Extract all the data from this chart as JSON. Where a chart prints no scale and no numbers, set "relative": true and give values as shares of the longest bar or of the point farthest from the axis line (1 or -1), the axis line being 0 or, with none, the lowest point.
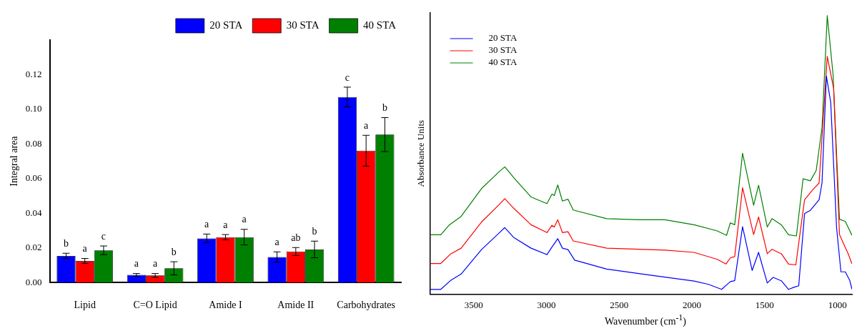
{
  "chart_data": [
    {
      "type": "bar",
      "ylabel": "Integral area",
      "categories": [
        "Lipid",
        "C=O Lipid",
        "Amide I",
        "Amide II",
        "Carbohydrates"
      ],
      "ylim": [
        0,
        0.14
      ],
      "yticks": [
        {
          "value": 0,
          "label": "0.00"
        },
        {
          "value": 0.02,
          "label": "0.02"
        },
        {
          "value": 0.04,
          "label": "0.04"
        },
        {
          "value": 0.06,
          "label": "0.06"
        },
        {
          "value": 0.08,
          "label": "0.08"
        },
        {
          "value": 0.1,
          "label": "0.10"
        },
        {
          "value": 0.12,
          "label": "0.12"
        }
      ],
      "grid": false,
      "legend": "top right",
      "series": [
        {
          "name": "20 STA",
          "color": "#0000ff",
          "values": [
            0.0154,
            0.0044,
            0.0255,
            0.0147,
            0.1071
          ],
          "errors": [
            0.0015,
            0.0008,
            0.0025,
            0.003,
            0.0057
          ],
          "value_labels": [
            "b",
            "a",
            "a",
            "a",
            "c"
          ]
        },
        {
          "name": "30 STA",
          "color": "#ff0000",
          "values": [
            0.0125,
            0.0041,
            0.0262,
            0.0179,
            0.0761
          ],
          "errors": [
            0.0014,
            0.0011,
            0.0015,
            0.0023,
            0.0089
          ],
          "value_labels": [
            "a",
            "a",
            "a",
            "ab",
            "a"
          ]
        },
        {
          "name": "40 STA",
          "color": "#008000",
          "values": [
            0.0186,
            0.0082,
            0.0262,
            0.0191,
            0.0854
          ],
          "errors": [
            0.0025,
            0.0038,
            0.0045,
            0.0048,
            0.0098
          ],
          "value_labels": [
            "c",
            "b",
            "a",
            "b",
            "b"
          ]
        }
      ]
    },
    {
      "type": "line",
      "relative": true,
      "xlabel": "Wavenumber (cm$^{-1}$)",
      "ylabel": "Absorbance Units",
      "xlim": [
        3800,
        900
      ],
      "xticks": [
        3500,
        3000,
        2500,
        2000,
        1500,
        1000
      ],
      "grid": false,
      "legend": "top left",
      "marker": "none",
      "series": [
        {
          "name": "20 STA",
          "color": "#0000ff",
          "x": [
            3800,
            3726,
            3656,
            3586,
            3446,
            3326,
            3286,
            3226,
            3106,
            2996,
            2962,
            2922,
            2890,
            2852,
            2806,
            2586,
            2286,
            1986,
            1886,
            1796,
            1736,
            1706,
            1652,
            1586,
            1542,
            1482,
            1442,
            1386,
            1336,
            1296,
            1266,
            1226,
            1186,
            1126,
            1106,
            1076,
            1046,
            1006,
            976,
            946,
            916,
            900
          ],
          "values": [
            0.017,
            0.017,
            0.05,
            0.072,
            0.16,
            0.219,
            0.239,
            0.204,
            0.165,
            0.142,
            0.169,
            0.199,
            0.165,
            0.16,
            0.122,
            0.09,
            0.068,
            0.047,
            0.035,
            0.017,
            0.045,
            0.048,
            0.242,
            0.085,
            0.15,
            0.04,
            0.06,
            0.048,
            0.017,
            0.025,
            0.03,
            0.289,
            0.301,
            0.339,
            0.399,
            0.783,
            0.688,
            0.239,
            0.08,
            0.08,
            0.05,
            0.017
          ]
        },
        {
          "name": "30 STA",
          "color": "#ff0000",
          "x": [
            3800,
            3726,
            3656,
            3586,
            3446,
            3326,
            3286,
            3226,
            3106,
            2996,
            2962,
            2946,
            2922,
            2890,
            2852,
            2816,
            2586,
            2186,
            1986,
            1826,
            1766,
            1736,
            1706,
            1652,
            1576,
            1542,
            1482,
            1450,
            1386,
            1336,
            1286,
            1226,
            1166,
            1126,
            1070,
            1026,
            986,
            956,
            926,
            900
          ],
          "values": [
            0.11,
            0.11,
            0.145,
            0.165,
            0.259,
            0.321,
            0.343,
            0.309,
            0.249,
            0.221,
            0.247,
            0.241,
            0.267,
            0.221,
            0.224,
            0.191,
            0.165,
            0.158,
            0.15,
            0.125,
            0.108,
            0.13,
            0.135,
            0.382,
            0.214,
            0.277,
            0.145,
            0.161,
            0.145,
            0.108,
            0.105,
            0.339,
            0.377,
            0.399,
            0.854,
            0.738,
            0.214,
            0.179,
            0.145,
            0.108
          ]
        },
        {
          "name": "40 STA",
          "color": "#008000",
          "x": [
            3800,
            3726,
            3666,
            3586,
            3446,
            3326,
            3286,
            3226,
            3106,
            2996,
            2962,
            2946,
            2922,
            2890,
            2852,
            2816,
            2586,
            2366,
            2186,
            1986,
            1826,
            1762,
            1736,
            1706,
            1652,
            1576,
            1542,
            1482,
            1450,
            1386,
            1336,
            1282,
            1236,
            1186,
            1146,
            1106,
            1070,
            1030,
            986,
            946,
            900
          ],
          "values": [
            0.213,
            0.213,
            0.249,
            0.279,
            0.379,
            0.439,
            0.457,
            0.419,
            0.349,
            0.325,
            0.359,
            0.354,
            0.392,
            0.334,
            0.341,
            0.302,
            0.271,
            0.267,
            0.267,
            0.249,
            0.227,
            0.211,
            0.256,
            0.249,
            0.506,
            0.319,
            0.391,
            0.241,
            0.271,
            0.249,
            0.213,
            0.209,
            0.414,
            0.407,
            0.444,
            0.598,
            1.0,
            0.788,
            0.269,
            0.261,
            0.211
          ]
        }
      ]
    }
  ]
}
